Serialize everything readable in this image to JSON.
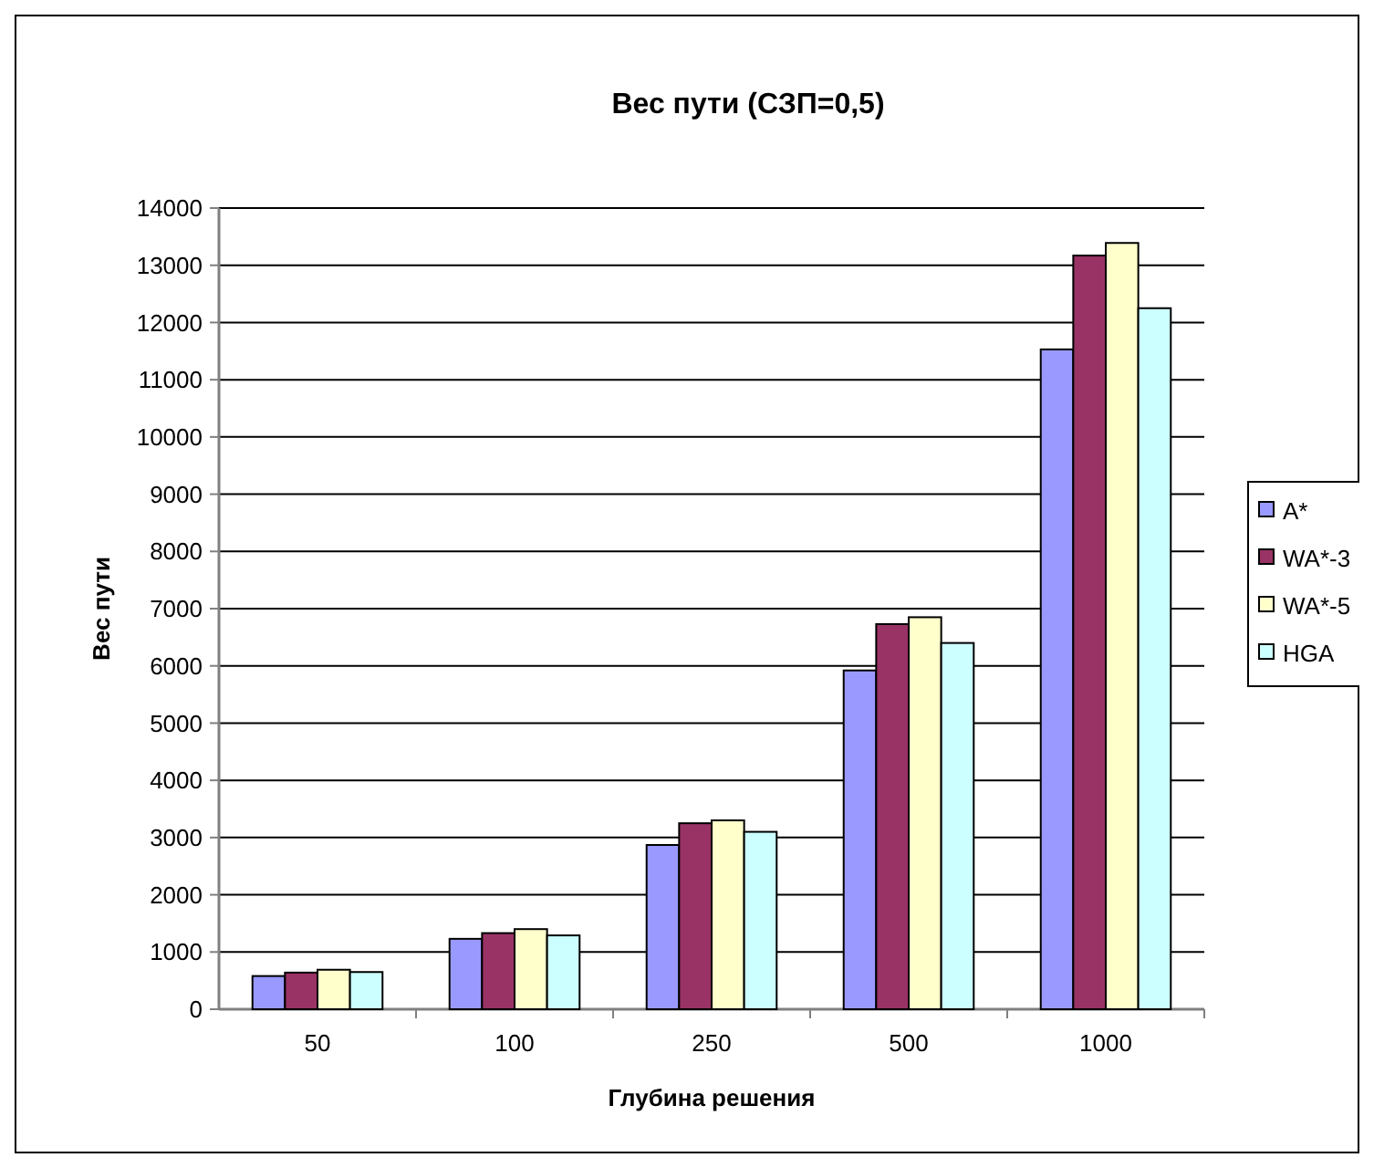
{
  "chart_data": {
    "type": "bar",
    "title": "Вес пути (СЗП=0,5)",
    "xlabel": "Глубина решения",
    "ylabel": "Вес пути",
    "categories": [
      "50",
      "100",
      "250",
      "500",
      "1000"
    ],
    "series": [
      {
        "name": "A*",
        "color": "#9999ff",
        "values": [
          580,
          1230,
          2870,
          5920,
          11530
        ]
      },
      {
        "name": "WA*-3",
        "color": "#993366",
        "values": [
          640,
          1330,
          3250,
          6730,
          13170
        ]
      },
      {
        "name": "WA*-5",
        "color": "#ffffcc",
        "values": [
          690,
          1400,
          3300,
          6850,
          13390
        ]
      },
      {
        "name": "HGA",
        "color": "#ccffff",
        "values": [
          650,
          1290,
          3100,
          6400,
          12250
        ]
      }
    ],
    "ylim": [
      0,
      14000
    ],
    "yticks": [
      0,
      1000,
      2000,
      3000,
      4000,
      5000,
      6000,
      7000,
      8000,
      9000,
      10000,
      11000,
      12000,
      13000,
      14000
    ],
    "grid": "y",
    "legend": "right"
  }
}
